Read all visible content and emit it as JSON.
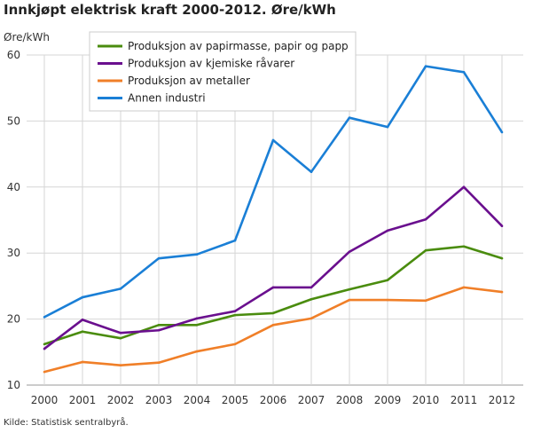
{
  "chart_data": {
    "type": "line",
    "title": "Innkjøpt elektrisk kraft 2000-2012. Øre/kWh",
    "ylabel": "Øre/kWh",
    "xlabel": "",
    "ylim": [
      10,
      60
    ],
    "yticks": [
      10,
      20,
      30,
      40,
      50,
      60
    ],
    "grid": true,
    "legend_position": "top-left",
    "x": [
      "2000",
      "2001",
      "2002",
      "2003",
      "2004",
      "2005",
      "2006",
      "2007",
      "2008",
      "2009",
      "2010",
      "2011",
      "2012"
    ],
    "series": [
      {
        "name": "Produksjon av papirmasse, papir og papp",
        "color": "#4a8c0e",
        "values": [
          16.2,
          18.1,
          17.1,
          19.1,
          19.1,
          20.6,
          20.9,
          23.0,
          24.5,
          25.9,
          30.4,
          31.0,
          29.2
        ]
      },
      {
        "name": "Produksjon av kjemiske råvarer",
        "color": "#6a0f8e",
        "values": [
          15.5,
          19.9,
          17.9,
          18.3,
          20.1,
          21.2,
          24.8,
          24.8,
          30.2,
          33.4,
          35.1,
          40.0,
          34.1
        ]
      },
      {
        "name": "Produksjon av metaller",
        "color": "#f07f28",
        "values": [
          12.0,
          13.5,
          13.0,
          13.4,
          15.1,
          16.2,
          19.1,
          20.1,
          22.9,
          22.9,
          22.8,
          24.8,
          24.1
        ]
      },
      {
        "name": "Annen industri",
        "color": "#1a7fd6",
        "values": [
          20.3,
          23.3,
          24.6,
          29.2,
          29.8,
          31.9,
          47.1,
          42.3,
          50.5,
          49.1,
          58.3,
          57.4,
          48.3
        ]
      }
    ]
  },
  "source": "Kilde: Statistisk sentralbyrå."
}
